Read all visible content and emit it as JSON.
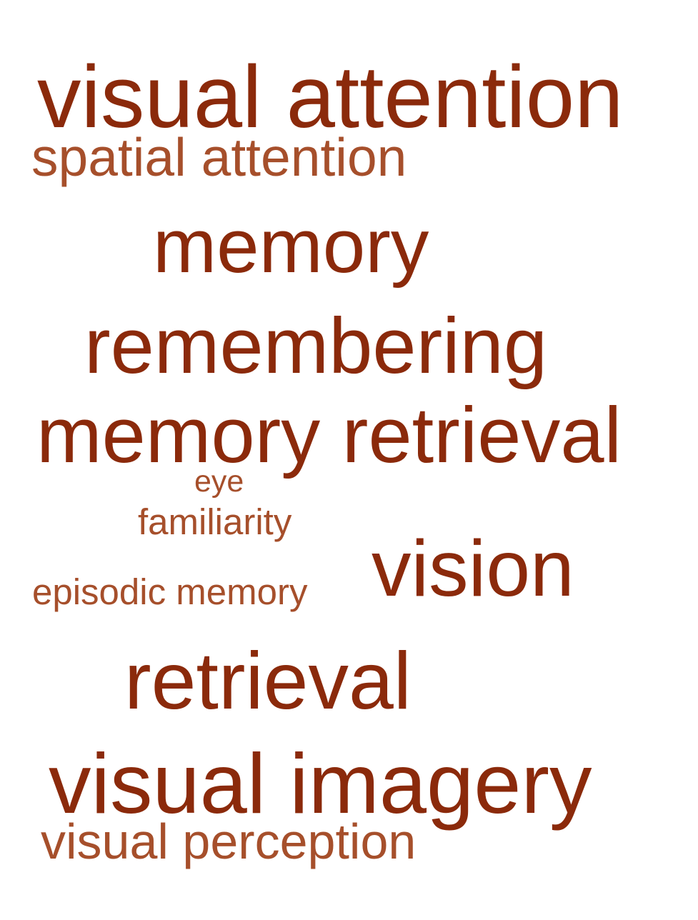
{
  "word_cloud": {
    "colors": {
      "dark": "#8b2a0b",
      "light": "#a64f2b",
      "background": "#ffffff"
    },
    "words": {
      "visual_attention": "visual attention",
      "spatial_attention": "spatial attention",
      "memory": "memory",
      "remembering": "remembering",
      "memory_retrieval": "memory retrieval",
      "eye": "eye",
      "familiarity": "familiarity",
      "vision": "vision",
      "episodic_memory": "episodic memory",
      "retrieval": "retrieval",
      "visual_imagery": "visual imagery",
      "visual_perception": "visual perception"
    }
  }
}
